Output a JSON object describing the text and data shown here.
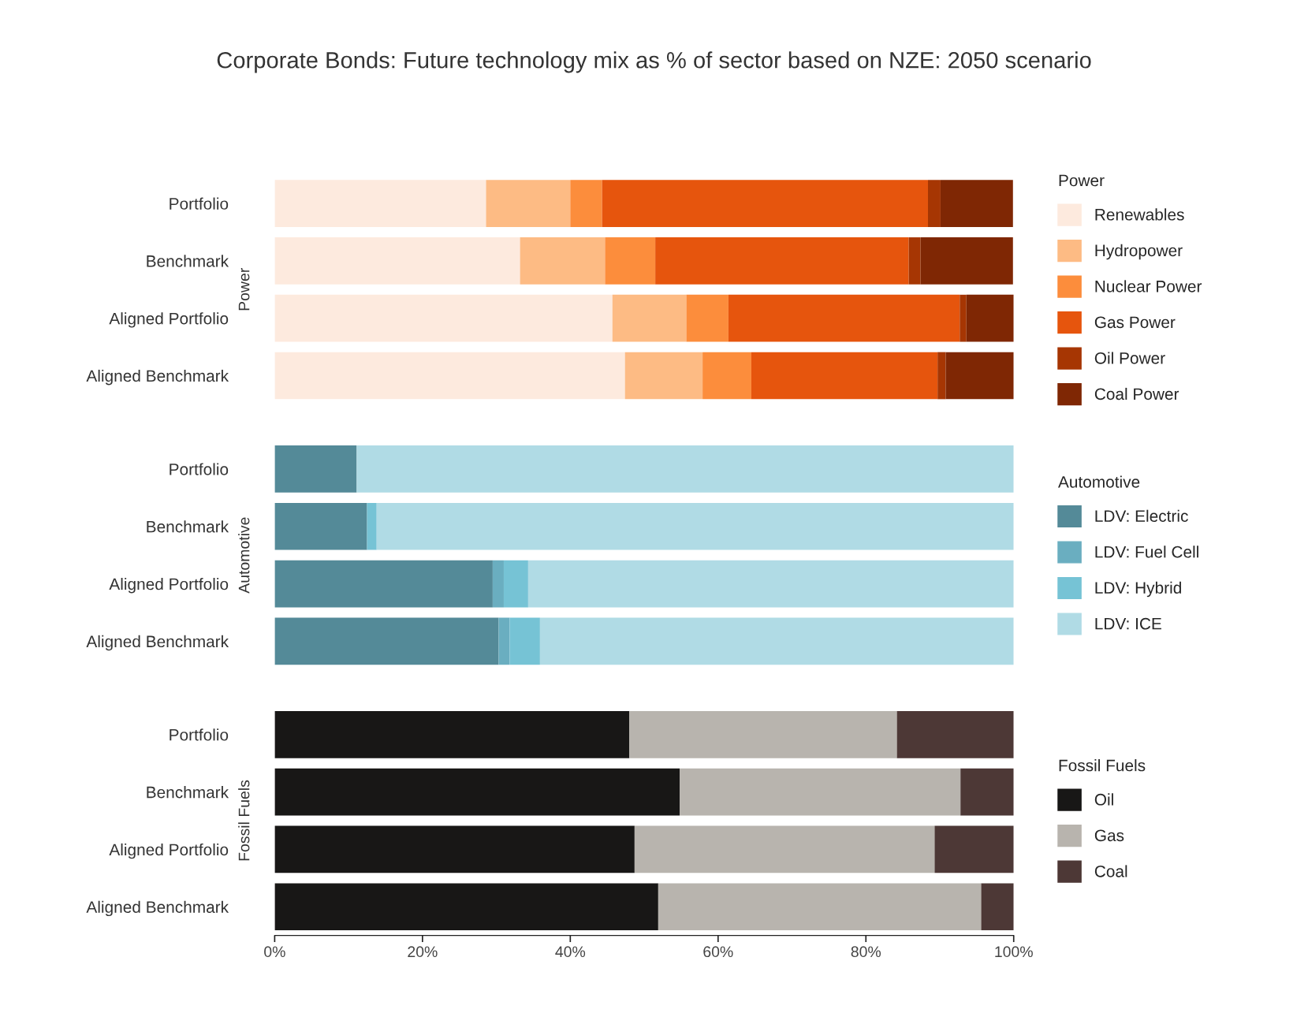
{
  "chart_data": [
    {
      "type": "bar",
      "orientation": "horizontal",
      "stacked": true,
      "title": "Corporate Bonds: Future technology mix as % of sector based on NZE: 2050 scenario",
      "ylabel": "Power",
      "legend_title": "Power",
      "legend": "right",
      "grid": false,
      "tick_labels": "y",
      "xlim": [
        0,
        100
      ],
      "categories": [
        "Portfolio",
        "Benchmark",
        "Aligned Portfolio",
        "Aligned Benchmark"
      ],
      "series": [
        {
          "name": "Renewables",
          "color": "#fdeade",
          "values": [
            28.6,
            33.2,
            45.7,
            47.4
          ]
        },
        {
          "name": "Hydropower",
          "color": "#fdbb84",
          "values": [
            11.4,
            11.5,
            10.0,
            10.5
          ]
        },
        {
          "name": "Nuclear Power",
          "color": "#fc8d3c",
          "values": [
            4.3,
            6.8,
            5.7,
            6.6
          ]
        },
        {
          "name": "Gas Power",
          "color": "#e6550d",
          "values": [
            44.1,
            34.3,
            31.3,
            25.2
          ]
        },
        {
          "name": "Oil Power",
          "color": "#a63603",
          "values": [
            1.7,
            1.6,
            0.9,
            1.1
          ]
        },
        {
          "name": "Coal Power",
          "color": "#7f2704",
          "values": [
            9.8,
            12.5,
            6.4,
            9.2
          ]
        }
      ]
    },
    {
      "type": "bar",
      "orientation": "horizontal",
      "stacked": true,
      "ylabel": "Automotive",
      "legend_title": "Automotive",
      "legend": "right",
      "grid": false,
      "tick_labels": "y",
      "xlim": [
        0,
        100
      ],
      "categories": [
        "Portfolio",
        "Benchmark",
        "Aligned Portfolio",
        "Aligned Benchmark"
      ],
      "series": [
        {
          "name": "LDV: Electric",
          "color": "#548a98",
          "values": [
            11.1,
            12.5,
            29.5,
            30.3
          ]
        },
        {
          "name": "LDV: Fuel Cell",
          "color": "#6aaec0",
          "values": [
            0,
            0,
            1.5,
            1.5
          ]
        },
        {
          "name": "LDV: Hybrid",
          "color": "#76c3d5",
          "values": [
            0,
            1.3,
            3.3,
            4.1
          ]
        },
        {
          "name": "LDV: ICE",
          "color": "#b0dbe5",
          "values": [
            88.9,
            86.2,
            65.7,
            64.1
          ]
        }
      ]
    },
    {
      "type": "bar",
      "orientation": "horizontal",
      "stacked": true,
      "ylabel": "Fossil Fuels",
      "legend_title": "Fossil Fuels",
      "legend": "right",
      "grid": false,
      "xlim": [
        0,
        100
      ],
      "xticks": [
        {
          "value": 0,
          "label": "0%"
        },
        {
          "value": 20,
          "label": "20%"
        },
        {
          "value": 40,
          "label": "40%"
        },
        {
          "value": 60,
          "label": "60%"
        },
        {
          "value": 80,
          "label": "80%"
        },
        {
          "value": 100,
          "label": "100%"
        }
      ],
      "categories": [
        "Portfolio",
        "Benchmark",
        "Aligned Portfolio",
        "Aligned Benchmark"
      ],
      "series": [
        {
          "name": "Oil",
          "color": "#181716",
          "values": [
            48.0,
            54.8,
            48.7,
            51.9
          ]
        },
        {
          "name": "Gas",
          "color": "#b8b4ae",
          "values": [
            36.2,
            38.0,
            40.6,
            43.7
          ]
        },
        {
          "name": "Coal",
          "color": "#4d3836",
          "values": [
            15.8,
            7.2,
            10.7,
            4.4
          ]
        }
      ]
    }
  ]
}
